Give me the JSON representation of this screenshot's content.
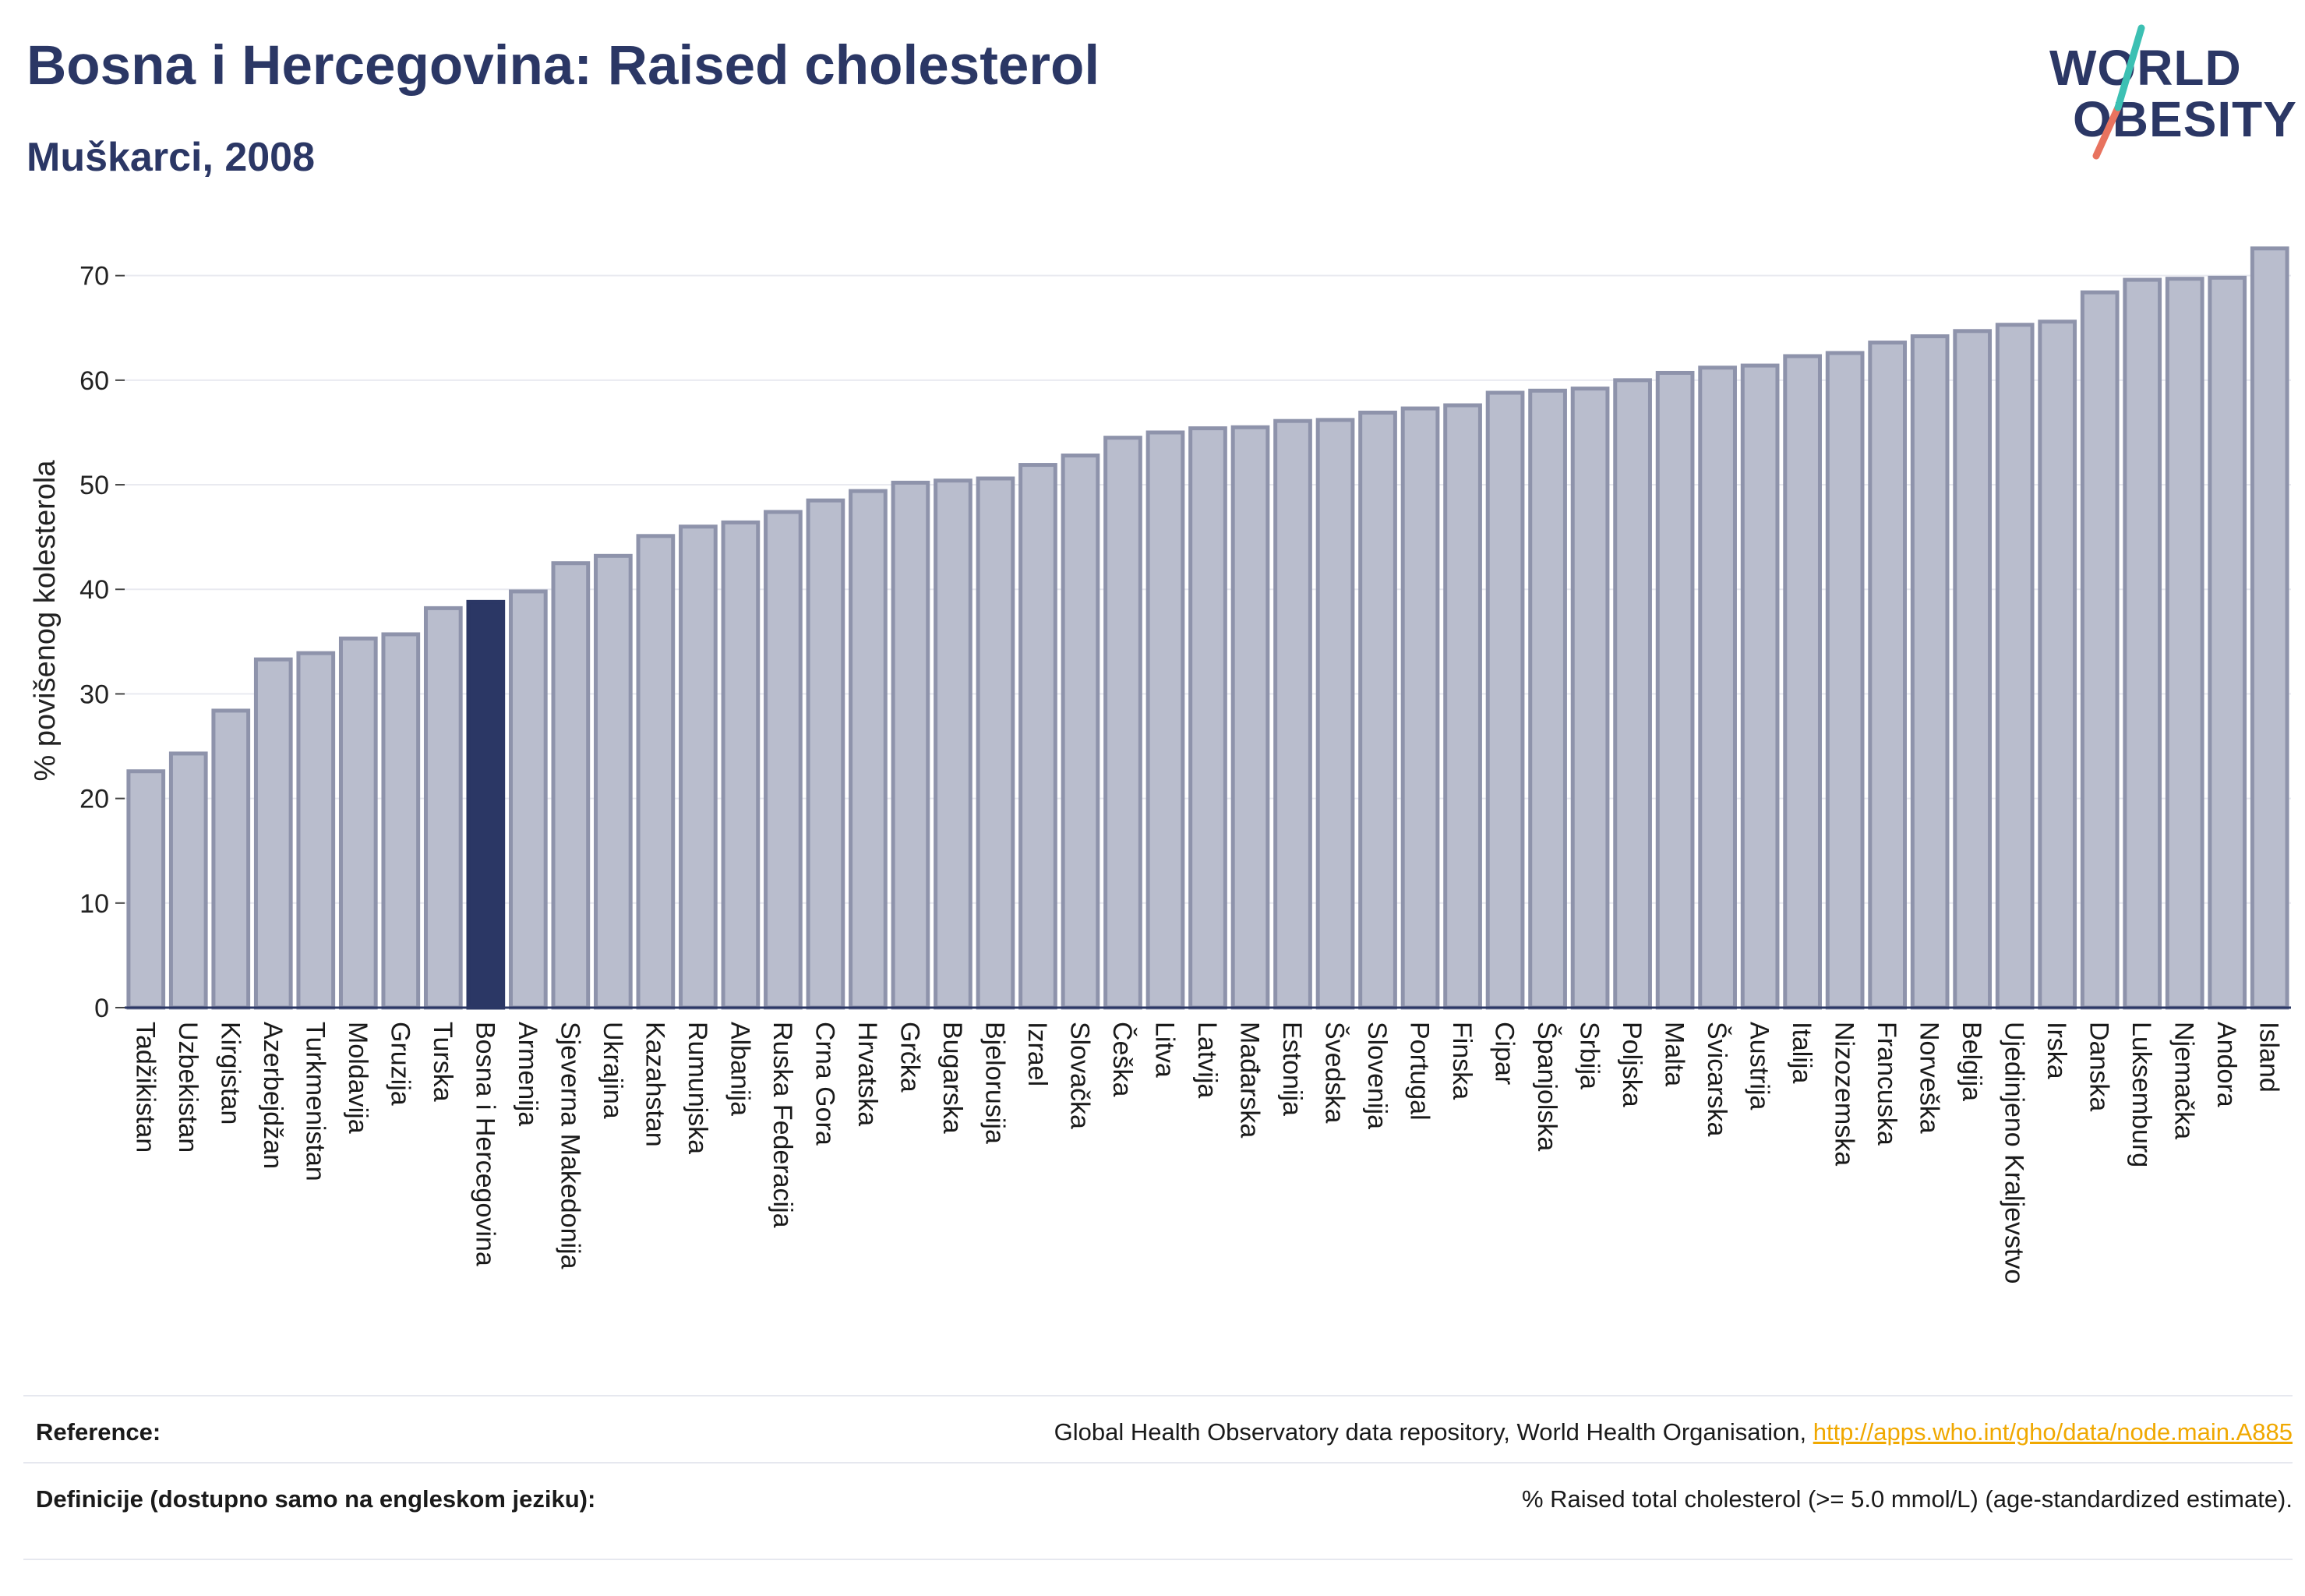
{
  "header": {
    "title": "Bosna i Hercegovina: Raised cholesterol",
    "subtitle": "Muškarci, 2008"
  },
  "logo": {
    "line1": "WORLD",
    "line2": "OBESITY"
  },
  "colors": {
    "highlight": "#2b3765",
    "bar_fill": "#b9bdcd",
    "bar_stroke": "#8e93ab",
    "link": "#f0a800"
  },
  "chart_data": {
    "type": "bar",
    "title": "Bosna i Hercegovina: Raised cholesterol",
    "subtitle": "Muškarci, 2008",
    "xlabel": "",
    "ylabel": "% povišenog kolesterola",
    "ylim": [
      0,
      74
    ],
    "yticks": [
      0,
      10,
      20,
      30,
      40,
      50,
      60,
      70
    ],
    "grid": true,
    "highlight": "Bosna i Hercegovina",
    "categories": [
      "Tadžikistan",
      "Uzbekistan",
      "Kirgistan",
      "Azerbejdžan",
      "Turkmenistan",
      "Moldavija",
      "Gruzija",
      "Turska",
      "Bosna i Hercegovina",
      "Armenija",
      "Sjeverna Makedonija",
      "Ukrajina",
      "Kazahstan",
      "Rumunjska",
      "Albanija",
      "Ruska Federacija",
      "Crna Gora",
      "Hrvatska",
      "Grčka",
      "Bugarska",
      "Bjelorusija",
      "Izrael",
      "Slovačka",
      "Češka",
      "Litva",
      "Latvija",
      "Mađarska",
      "Estonija",
      "Švedska",
      "Slovenija",
      "Portugal",
      "Finska",
      "Cipar",
      "Španjolska",
      "Srbija",
      "Poljska",
      "Malta",
      "Švicarska",
      "Austrija",
      "Italija",
      "Nizozemska",
      "Francuska",
      "Norveška",
      "Belgija",
      "Ujedinjeno Kraljevstvo",
      "Irska",
      "Danska",
      "Luksemburg",
      "Njemačka",
      "Andora",
      "Island"
    ],
    "values": [
      22.6,
      24.3,
      28.4,
      33.3,
      33.9,
      35.3,
      35.7,
      38.2,
      38.8,
      39.8,
      42.5,
      43.2,
      45.1,
      46.0,
      46.4,
      47.4,
      48.5,
      49.4,
      50.2,
      50.4,
      50.6,
      51.9,
      52.8,
      54.5,
      55.0,
      55.4,
      55.5,
      56.1,
      56.2,
      56.9,
      57.3,
      57.6,
      58.8,
      59.0,
      59.2,
      60.0,
      60.7,
      61.2,
      61.4,
      62.3,
      62.6,
      63.6,
      64.2,
      64.7,
      65.3,
      65.6,
      68.4,
      69.6,
      69.7,
      69.8,
      72.6
    ]
  },
  "reference": {
    "rows": [
      {
        "label": "Reference:",
        "text": "Global Health Observatory data repository, World Health Organisation, ",
        "link": "http://apps.who.int/gho/data/node.main.A885"
      },
      {
        "label": "Definicije (dostupno samo na engleskom jeziku):",
        "text": "% Raised total cholesterol (>= 5.0 mmol/L) (age-standardized estimate)."
      }
    ]
  }
}
